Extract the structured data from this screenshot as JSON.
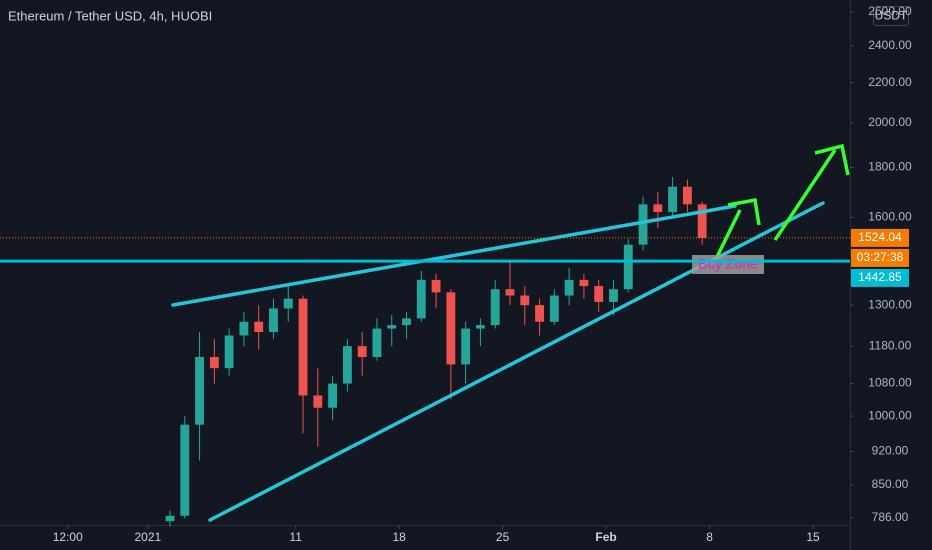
{
  "chart_data": {
    "type": "candlestick",
    "title": "Ethereum / Tether USD, 4h, HUOBI",
    "currency_button": "USDT",
    "annotation": "Buy Zone",
    "log_scale": true,
    "up_color": "#26a69a",
    "down_color": "#ef5350",
    "x": [
      "2021-01-02",
      "2021-01-03",
      "2021-01-04",
      "2021-01-05",
      "2021-01-06",
      "2021-01-07",
      "2021-01-08",
      "2021-01-09",
      "2021-01-10",
      "2021-01-11",
      "2021-01-12",
      "2021-01-13",
      "2021-01-14",
      "2021-01-15",
      "2021-01-16",
      "2021-01-17",
      "2021-01-18",
      "2021-01-19",
      "2021-01-20",
      "2021-01-21",
      "2021-01-22",
      "2021-01-23",
      "2021-01-24",
      "2021-01-25",
      "2021-01-26",
      "2021-01-27",
      "2021-01-28",
      "2021-01-29",
      "2021-01-30",
      "2021-01-31",
      "2021-02-01",
      "2021-02-02",
      "2021-02-03",
      "2021-02-04",
      "2021-02-05",
      "2021-02-06",
      "2021-02-07"
    ],
    "open": [
      780,
      790,
      980,
      1150,
      1120,
      1210,
      1250,
      1220,
      1290,
      1320,
      1050,
      1020,
      1080,
      1180,
      1150,
      1230,
      1240,
      1260,
      1380,
      1340,
      1130,
      1230,
      1240,
      1350,
      1330,
      1300,
      1250,
      1330,
      1380,
      1360,
      1310,
      1350,
      1500,
      1650,
      1620,
      1720,
      1650
    ],
    "high": [
      800,
      1000,
      1220,
      1200,
      1230,
      1280,
      1300,
      1320,
      1360,
      1330,
      1120,
      1100,
      1200,
      1220,
      1260,
      1270,
      1280,
      1410,
      1400,
      1350,
      1250,
      1260,
      1380,
      1440,
      1360,
      1320,
      1350,
      1420,
      1400,
      1380,
      1380,
      1520,
      1680,
      1700,
      1760,
      1750,
      1660
    ],
    "low": [
      770,
      785,
      900,
      1080,
      1100,
      1180,
      1170,
      1200,
      1250,
      960,
      930,
      990,
      1060,
      1100,
      1140,
      1180,
      1200,
      1250,
      1290,
      1040,
      1080,
      1180,
      1230,
      1300,
      1240,
      1210,
      1240,
      1300,
      1320,
      1280,
      1270,
      1340,
      1480,
      1560,
      1600,
      1620,
      1500
    ],
    "close": [
      790,
      980,
      1150,
      1120,
      1210,
      1250,
      1220,
      1290,
      1320,
      1050,
      1020,
      1080,
      1180,
      1150,
      1230,
      1240,
      1260,
      1380,
      1340,
      1130,
      1230,
      1240,
      1350,
      1330,
      1300,
      1250,
      1330,
      1380,
      1360,
      1310,
      1350,
      1500,
      1650,
      1620,
      1720,
      1650,
      1524.04
    ],
    "last_price": {
      "value": 1524.04,
      "label": "1524.04",
      "color": "#f57c00"
    },
    "countdown": "03:27:38",
    "hline": {
      "value": 1442.85,
      "label": "1442.85",
      "color": "#00bcd4"
    },
    "xlim": [
      "2020-12-22T00:00",
      "2021-02-17T12:00"
    ],
    "xticks": [
      {
        "value": "2020-12-26T14:00",
        "label": "12:00"
      },
      {
        "value": "2021-01-01T00:00",
        "label": "2021"
      },
      {
        "value": "2021-01-11T00:00",
        "label": "11"
      },
      {
        "value": "2021-01-18T00:00",
        "label": "18"
      },
      {
        "value": "2021-01-25T00:00",
        "label": "25"
      },
      {
        "value": "2021-02-01T00:00",
        "label": "Feb"
      },
      {
        "value": "2021-02-08T00:00",
        "label": "8"
      },
      {
        "value": "2021-02-15T00:00",
        "label": "15"
      }
    ],
    "ylim": [
      773,
      2675
    ],
    "yticks": [
      {
        "value": 786,
        "label": "786.00"
      },
      {
        "value": 850,
        "label": "850.00"
      },
      {
        "value": 920,
        "label": "920.00"
      },
      {
        "value": 1000,
        "label": "1000.00"
      },
      {
        "value": 1080,
        "label": "1080.00"
      },
      {
        "value": 1180,
        "label": "1180.00"
      },
      {
        "value": 1300,
        "label": "1300.00"
      },
      {
        "value": 1600,
        "label": "1600.00"
      },
      {
        "value": 1800,
        "label": "1800.00"
      },
      {
        "value": 2000,
        "label": "2000.00"
      },
      {
        "value": 2200,
        "label": "2200.00"
      },
      {
        "value": 2400,
        "label": "2400.00"
      },
      {
        "value": 2600,
        "label": "2600.00"
      }
    ]
  }
}
